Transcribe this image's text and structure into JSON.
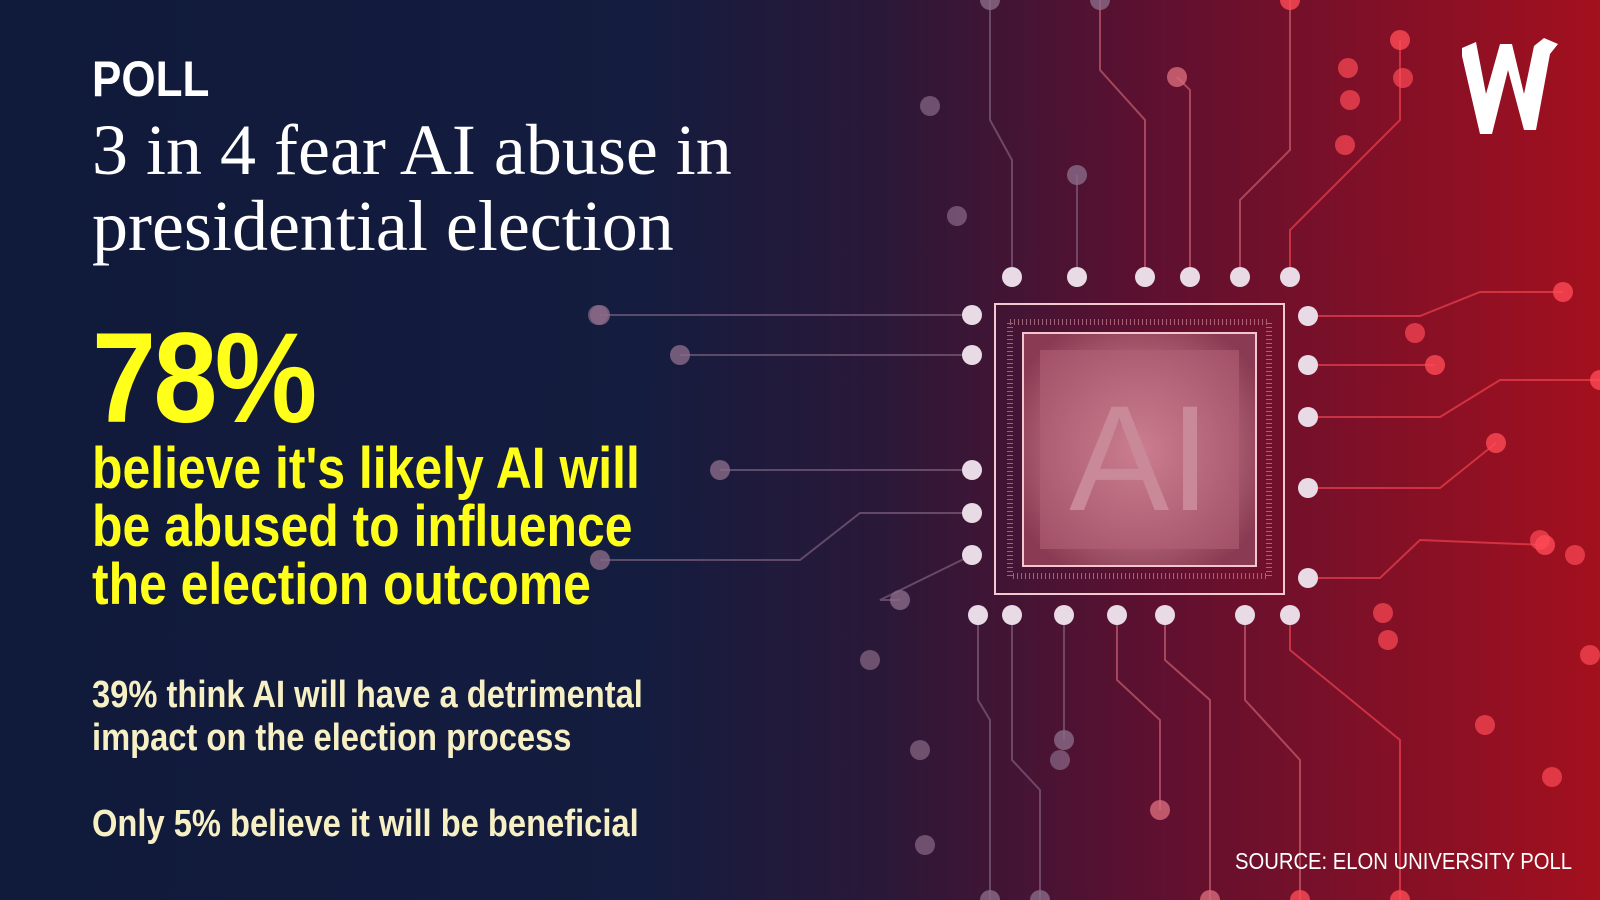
{
  "header": {
    "kicker": "POLL",
    "title_lines": [
      "3 in 4 fear AI abuse in",
      "presidential election"
    ]
  },
  "headline": {
    "stat": "78%",
    "lines": [
      "believe it's likely AI will",
      "be abused to influence",
      "the election outcome"
    ]
  },
  "details": [
    [
      "39% think AI will have a detrimental",
      "impact on the election process"
    ],
    [
      "Only 5% believe it will be beneficial"
    ]
  ],
  "chip_label": "AI",
  "source": "SOURCE: ELON UNIVERSITY POLL"
}
